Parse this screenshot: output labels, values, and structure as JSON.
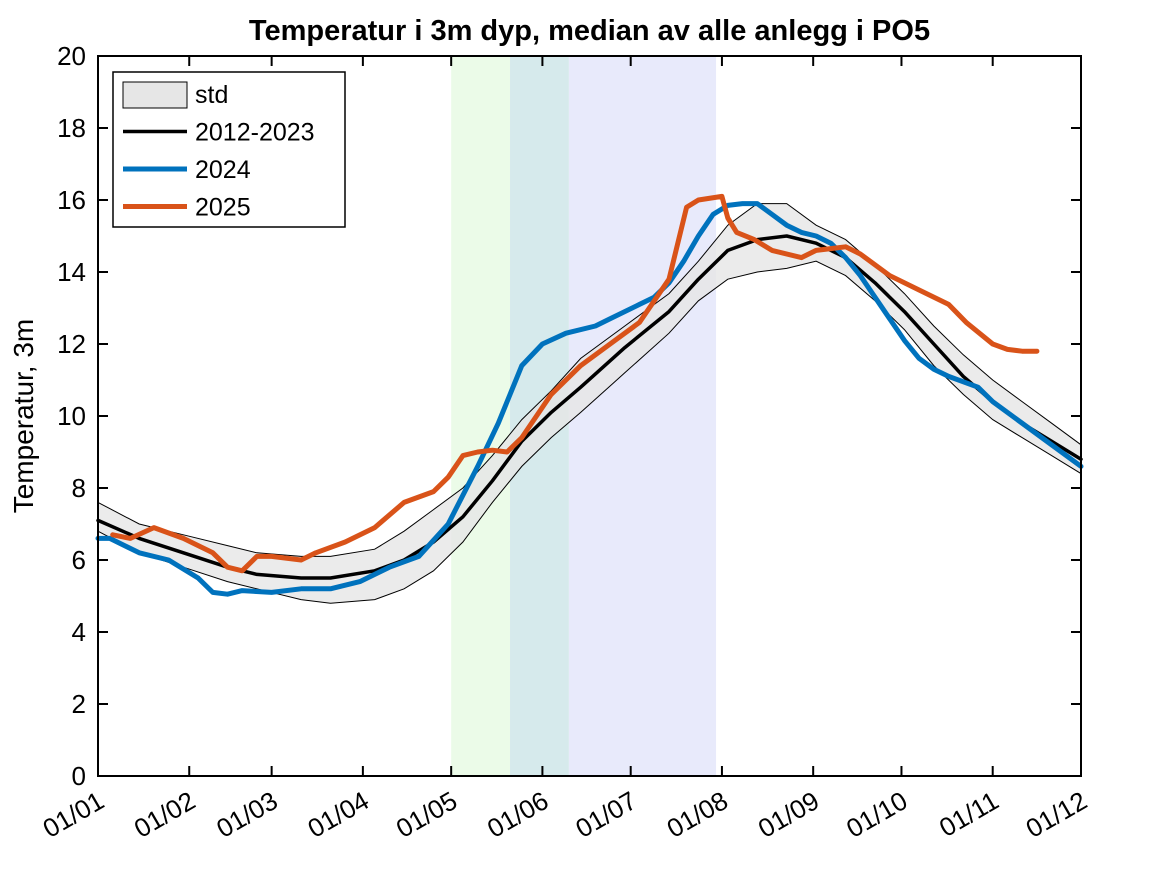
{
  "chart_data": {
    "type": "line",
    "title": "Temperatur i 3m dyp, median av alle anlegg i PO5",
    "xlabel": "",
    "ylabel": "Temperatur, 3m",
    "xlim": [
      1,
      335
    ],
    "ylim": [
      0,
      20
    ],
    "x_ticks": [
      {
        "day": 1,
        "label": "01/01"
      },
      {
        "day": 32,
        "label": "01/02"
      },
      {
        "day": 60,
        "label": "01/03"
      },
      {
        "day": 91,
        "label": "01/04"
      },
      {
        "day": 121,
        "label": "01/05"
      },
      {
        "day": 152,
        "label": "01/06"
      },
      {
        "day": 182,
        "label": "01/07"
      },
      {
        "day": 213,
        "label": "01/08"
      },
      {
        "day": 244,
        "label": "01/09"
      },
      {
        "day": 274,
        "label": "01/10"
      },
      {
        "day": 305,
        "label": "01/11"
      },
      {
        "day": 335,
        "label": "01/12"
      }
    ],
    "y_ticks": [
      0,
      2,
      4,
      6,
      8,
      10,
      12,
      14,
      16,
      18,
      20
    ],
    "grid": false,
    "legend_position": "top-left",
    "shaded_periods": [
      {
        "from_day": 121,
        "to_day": 141,
        "color": "#ebfbe8"
      },
      {
        "from_day": 141,
        "to_day": 161,
        "color": "#d6eaec"
      },
      {
        "from_day": 161,
        "to_day": 211,
        "color": "#e8eafb"
      }
    ],
    "band": {
      "name": "std",
      "fill": "#e6e6e6",
      "stroke": "#000000",
      "x": [
        1,
        15,
        30,
        45,
        55,
        70,
        80,
        95,
        105,
        115,
        125,
        135,
        145,
        155,
        165,
        180,
        195,
        205,
        215,
        225,
        235,
        245,
        255,
        265,
        275,
        285,
        295,
        305,
        315,
        325,
        335
      ],
      "upper": [
        7.6,
        7.0,
        6.7,
        6.4,
        6.2,
        6.1,
        6.1,
        6.3,
        6.8,
        7.4,
        8.0,
        8.9,
        9.9,
        10.7,
        11.6,
        12.5,
        13.4,
        14.3,
        15.3,
        15.9,
        15.9,
        15.3,
        14.9,
        14.2,
        13.4,
        12.5,
        11.7,
        11.0,
        10.4,
        9.8,
        9.2
      ],
      "lower": [
        6.8,
        6.2,
        5.8,
        5.4,
        5.2,
        4.9,
        4.8,
        4.9,
        5.2,
        5.7,
        6.5,
        7.6,
        8.6,
        9.4,
        10.1,
        11.2,
        12.3,
        13.2,
        13.8,
        14.0,
        14.1,
        14.3,
        13.9,
        13.2,
        12.4,
        11.4,
        10.6,
        9.9,
        9.4,
        8.9,
        8.4
      ]
    },
    "series": [
      {
        "name": "2012-2023",
        "color": "#000000",
        "x": [
          1,
          15,
          30,
          45,
          55,
          70,
          80,
          95,
          105,
          115,
          125,
          135,
          145,
          155,
          165,
          180,
          195,
          205,
          215,
          225,
          235,
          245,
          255,
          265,
          275,
          285,
          295,
          305,
          315,
          325,
          335
        ],
        "values": [
          7.1,
          6.6,
          6.2,
          5.8,
          5.6,
          5.5,
          5.5,
          5.7,
          6.0,
          6.5,
          7.2,
          8.2,
          9.3,
          10.1,
          10.8,
          11.9,
          12.9,
          13.8,
          14.6,
          14.9,
          15.0,
          14.8,
          14.4,
          13.7,
          12.9,
          12.0,
          11.1,
          10.4,
          9.8,
          9.3,
          8.8
        ]
      },
      {
        "name": "2024",
        "color": "#0072bd",
        "x": [
          1,
          5,
          15,
          25,
          35,
          40,
          45,
          50,
          60,
          70,
          80,
          90,
          100,
          110,
          120,
          125,
          130,
          137,
          145,
          152,
          160,
          170,
          175,
          185,
          190,
          195,
          200,
          205,
          210,
          215,
          220,
          225,
          230,
          235,
          240,
          245,
          250,
          255,
          260,
          265,
          270,
          275,
          280,
          285,
          290,
          300,
          305,
          315,
          325,
          335
        ],
        "values": [
          6.6,
          6.6,
          6.2,
          6.0,
          5.5,
          5.1,
          5.05,
          5.15,
          5.1,
          5.2,
          5.2,
          5.4,
          5.8,
          6.1,
          7.0,
          7.8,
          8.6,
          9.8,
          11.4,
          12.0,
          12.3,
          12.5,
          12.7,
          13.1,
          13.3,
          13.7,
          14.3,
          15.0,
          15.6,
          15.85,
          15.9,
          15.9,
          15.6,
          15.3,
          15.1,
          15.0,
          14.8,
          14.4,
          13.9,
          13.3,
          12.7,
          12.1,
          11.6,
          11.3,
          11.1,
          10.8,
          10.4,
          9.8,
          9.2,
          8.6
        ]
      },
      {
        "name": "2025",
        "color": "#d95319",
        "x": [
          6,
          12,
          20,
          30,
          40,
          45,
          50,
          55,
          60,
          70,
          75,
          85,
          95,
          105,
          115,
          120,
          125,
          130,
          135,
          140,
          145,
          155,
          165,
          175,
          185,
          195,
          201,
          205,
          213,
          215,
          218,
          224,
          230,
          240,
          245,
          250,
          255,
          260,
          270,
          280,
          290,
          296,
          305,
          310,
          315,
          320
        ],
        "values": [
          6.7,
          6.6,
          6.9,
          6.6,
          6.2,
          5.8,
          5.7,
          6.1,
          6.1,
          6.0,
          6.2,
          6.5,
          6.9,
          7.6,
          7.9,
          8.3,
          8.9,
          9.0,
          9.05,
          9.0,
          9.4,
          10.6,
          11.4,
          12.0,
          12.6,
          13.8,
          15.8,
          16.0,
          16.1,
          15.5,
          15.1,
          14.9,
          14.6,
          14.4,
          14.6,
          14.65,
          14.7,
          14.5,
          13.9,
          13.5,
          13.1,
          12.6,
          12.0,
          11.85,
          11.8,
          11.8
        ]
      }
    ]
  }
}
